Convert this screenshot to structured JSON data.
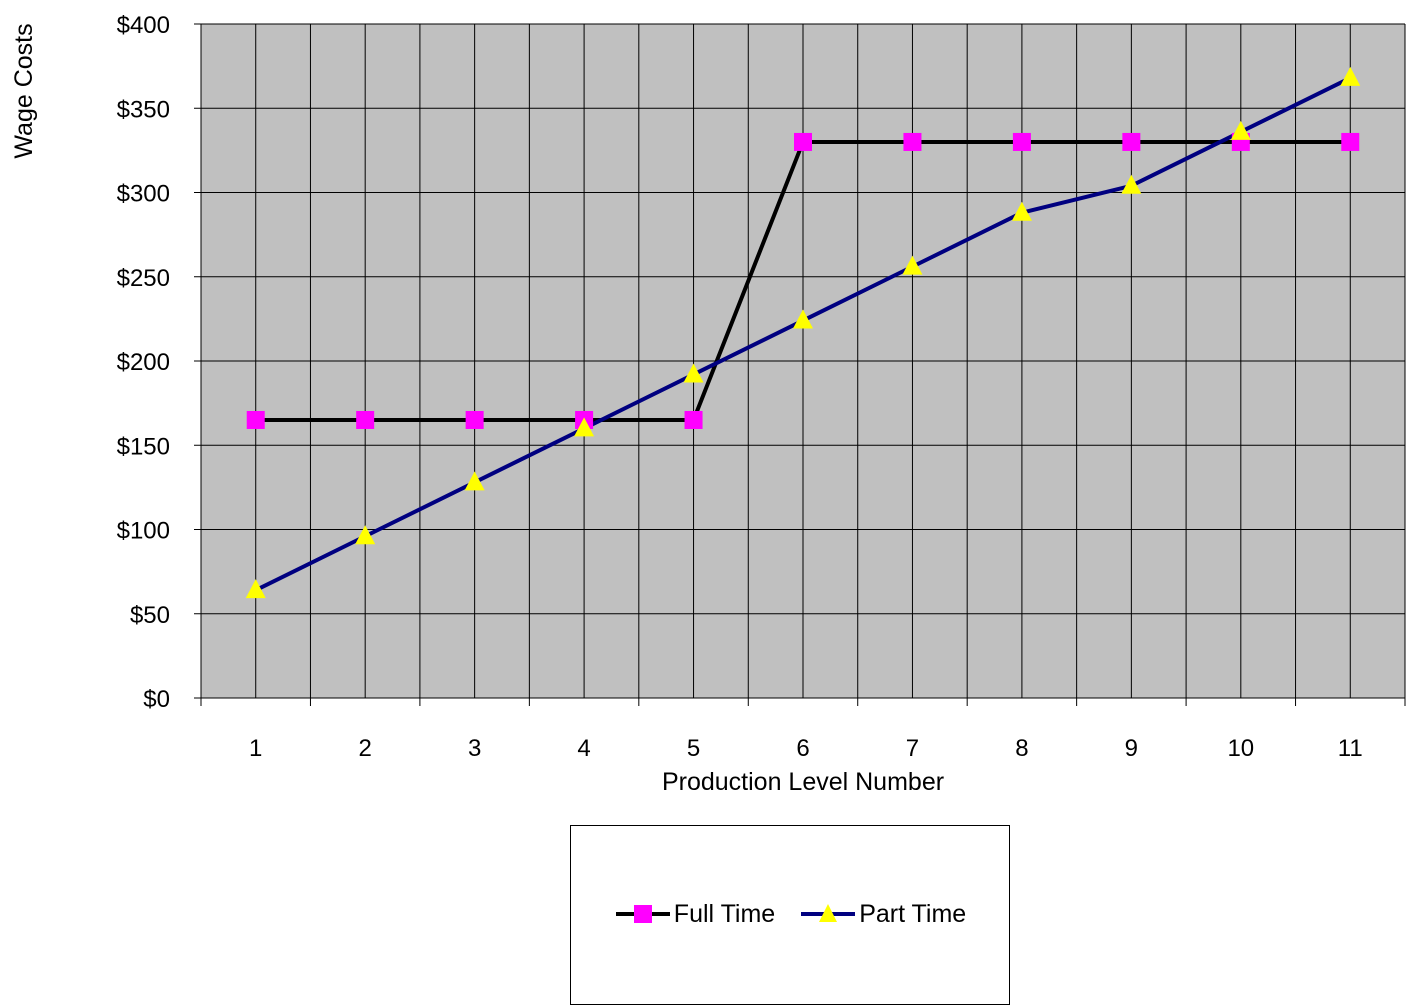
{
  "chart_data": {
    "type": "line",
    "title": "",
    "xlabel": "Production Level Number",
    "ylabel": "Wage Costs",
    "categories": [
      "1",
      "2",
      "3",
      "4",
      "5",
      "6",
      "7",
      "8",
      "9",
      "10",
      "11"
    ],
    "y_ticks": [
      "$0",
      "$50",
      "$100",
      "$150",
      "$200",
      "$250",
      "$300",
      "$350",
      "$400"
    ],
    "ylim": [
      0,
      400
    ],
    "grid": true,
    "plot_background": "#c0c0c0",
    "legend_position": "bottom",
    "series": [
      {
        "name": "Full Time",
        "values": [
          165,
          165,
          165,
          165,
          165,
          330,
          330,
          330,
          330,
          330,
          330
        ],
        "line_color": "#000000",
        "marker": "square",
        "marker_color": "#ff00ff"
      },
      {
        "name": "Part Time",
        "values": [
          64,
          96,
          128,
          160,
          192,
          224,
          256,
          288,
          304,
          336,
          368
        ],
        "line_color": "#000080",
        "marker": "triangle",
        "marker_color": "#ffff00"
      }
    ]
  }
}
